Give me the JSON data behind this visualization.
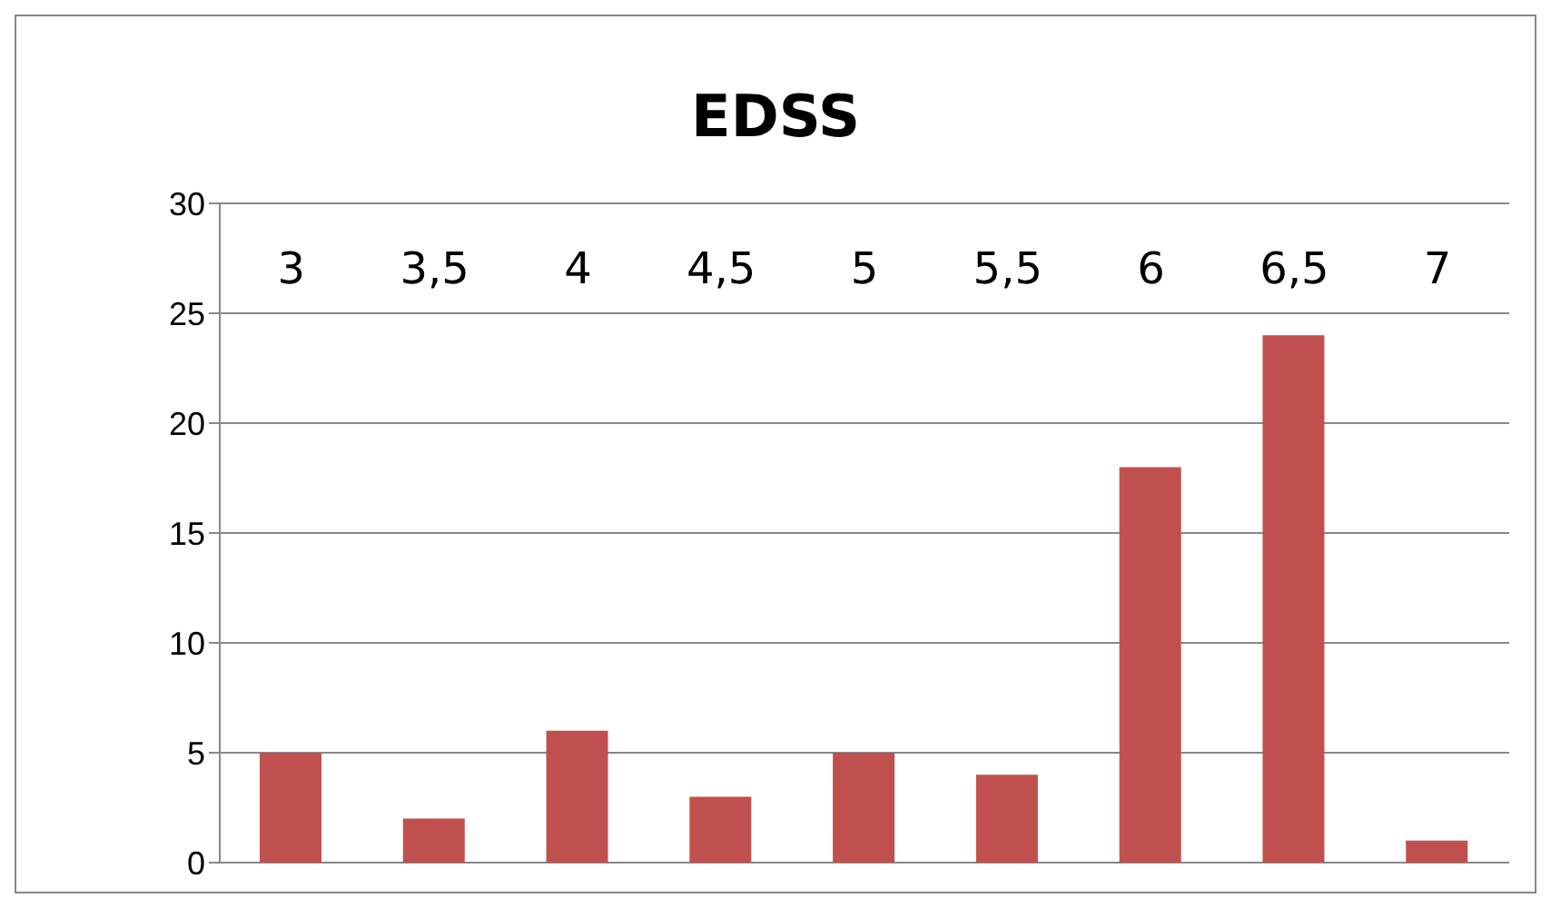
{
  "chart_data": {
    "type": "bar",
    "title": "EDSS",
    "categories": [
      "3",
      "3,5",
      "4",
      "4,5",
      "5",
      "5,5",
      "6",
      "6,5",
      "7"
    ],
    "values": [
      5,
      2,
      6,
      3,
      5,
      4,
      18,
      24,
      1
    ],
    "color": "#c0504d",
    "ylim": [
      0,
      30
    ],
    "yticks": [
      0,
      5,
      10,
      15,
      20,
      25,
      30
    ],
    "grid": "y"
  }
}
